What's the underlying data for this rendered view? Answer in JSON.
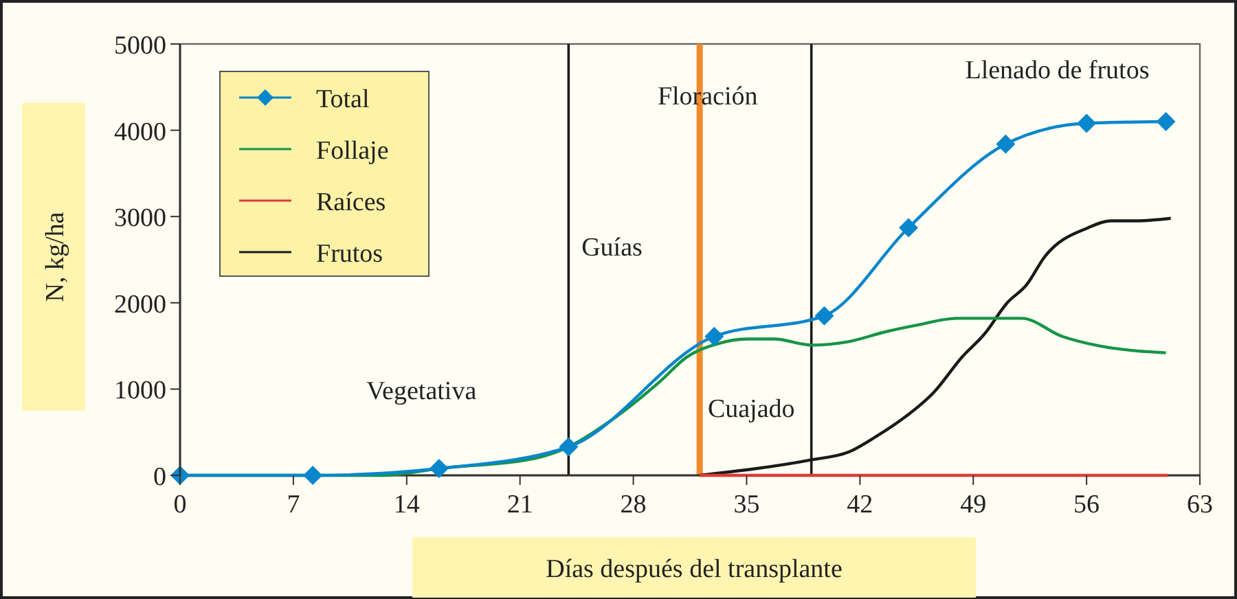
{
  "chart_data": {
    "type": "line",
    "xlabel": "Días después del transplante",
    "ylabel": "N, kg/ha",
    "xlim": [
      0,
      63
    ],
    "xticks": [
      0,
      7,
      14,
      21,
      28,
      35,
      42,
      49,
      56,
      63
    ],
    "ylim": [
      0,
      5000
    ],
    "yticks": [
      0,
      1000,
      2000,
      3000,
      4000,
      5000
    ],
    "grid": false,
    "legend": "top left",
    "line_style": "solid",
    "series": [
      {
        "name": "Total",
        "color": "#0a86cc",
        "marker": "diamond",
        "x": [
          0,
          8.2,
          16,
          24,
          33,
          39.8,
          45,
          51,
          56,
          60.9
        ],
        "values": [
          0,
          0,
          80,
          330,
          1610,
          1850,
          2870,
          3840,
          4080,
          4100
        ]
      },
      {
        "name": "Follaje",
        "color": "#179447",
        "marker": "none",
        "x": [
          0,
          12.6,
          16,
          22,
          24,
          26.5,
          29.6,
          31.3,
          33.3,
          35,
          36.7,
          39,
          41.3,
          43.5,
          45.5,
          48,
          52,
          54.5,
          56.8,
          58.7,
          60.9
        ],
        "values": [
          0,
          0,
          80,
          200,
          330,
          620,
          1080,
          1370,
          1530,
          1580,
          1580,
          1510,
          1550,
          1660,
          1740,
          1820,
          1820,
          1610,
          1500,
          1450,
          1420
        ]
      },
      {
        "name": "Raíces",
        "color": "#e0393a",
        "marker": "none",
        "x": [
          32.1,
          61
        ],
        "values": [
          0,
          0
        ]
      },
      {
        "name": "Frutos",
        "color": "#1a1a1a",
        "marker": "none",
        "x": [
          32.1,
          39,
          41.3,
          43,
          44.6,
          46.6,
          48.3,
          49.7,
          51.1,
          52.3,
          53.4,
          56.1,
          57.5,
          59.1,
          61.2
        ],
        "values": [
          0,
          180,
          270,
          450,
          650,
          970,
          1370,
          1640,
          2000,
          2210,
          2530,
          2870,
          2950,
          2950,
          2980
        ]
      }
    ],
    "ref_lines": [
      {
        "axis": "x",
        "value": 24,
        "color": "#1a1a1a"
      },
      {
        "axis": "x",
        "value": 32.1,
        "color": "#f08a2c"
      },
      {
        "axis": "x",
        "value": 39,
        "color": "#1a1a1a"
      }
    ],
    "annotations": [
      "Vegetativa",
      "Guías",
      "Floración",
      "Cuajado",
      "Llenado de frutos"
    ]
  }
}
